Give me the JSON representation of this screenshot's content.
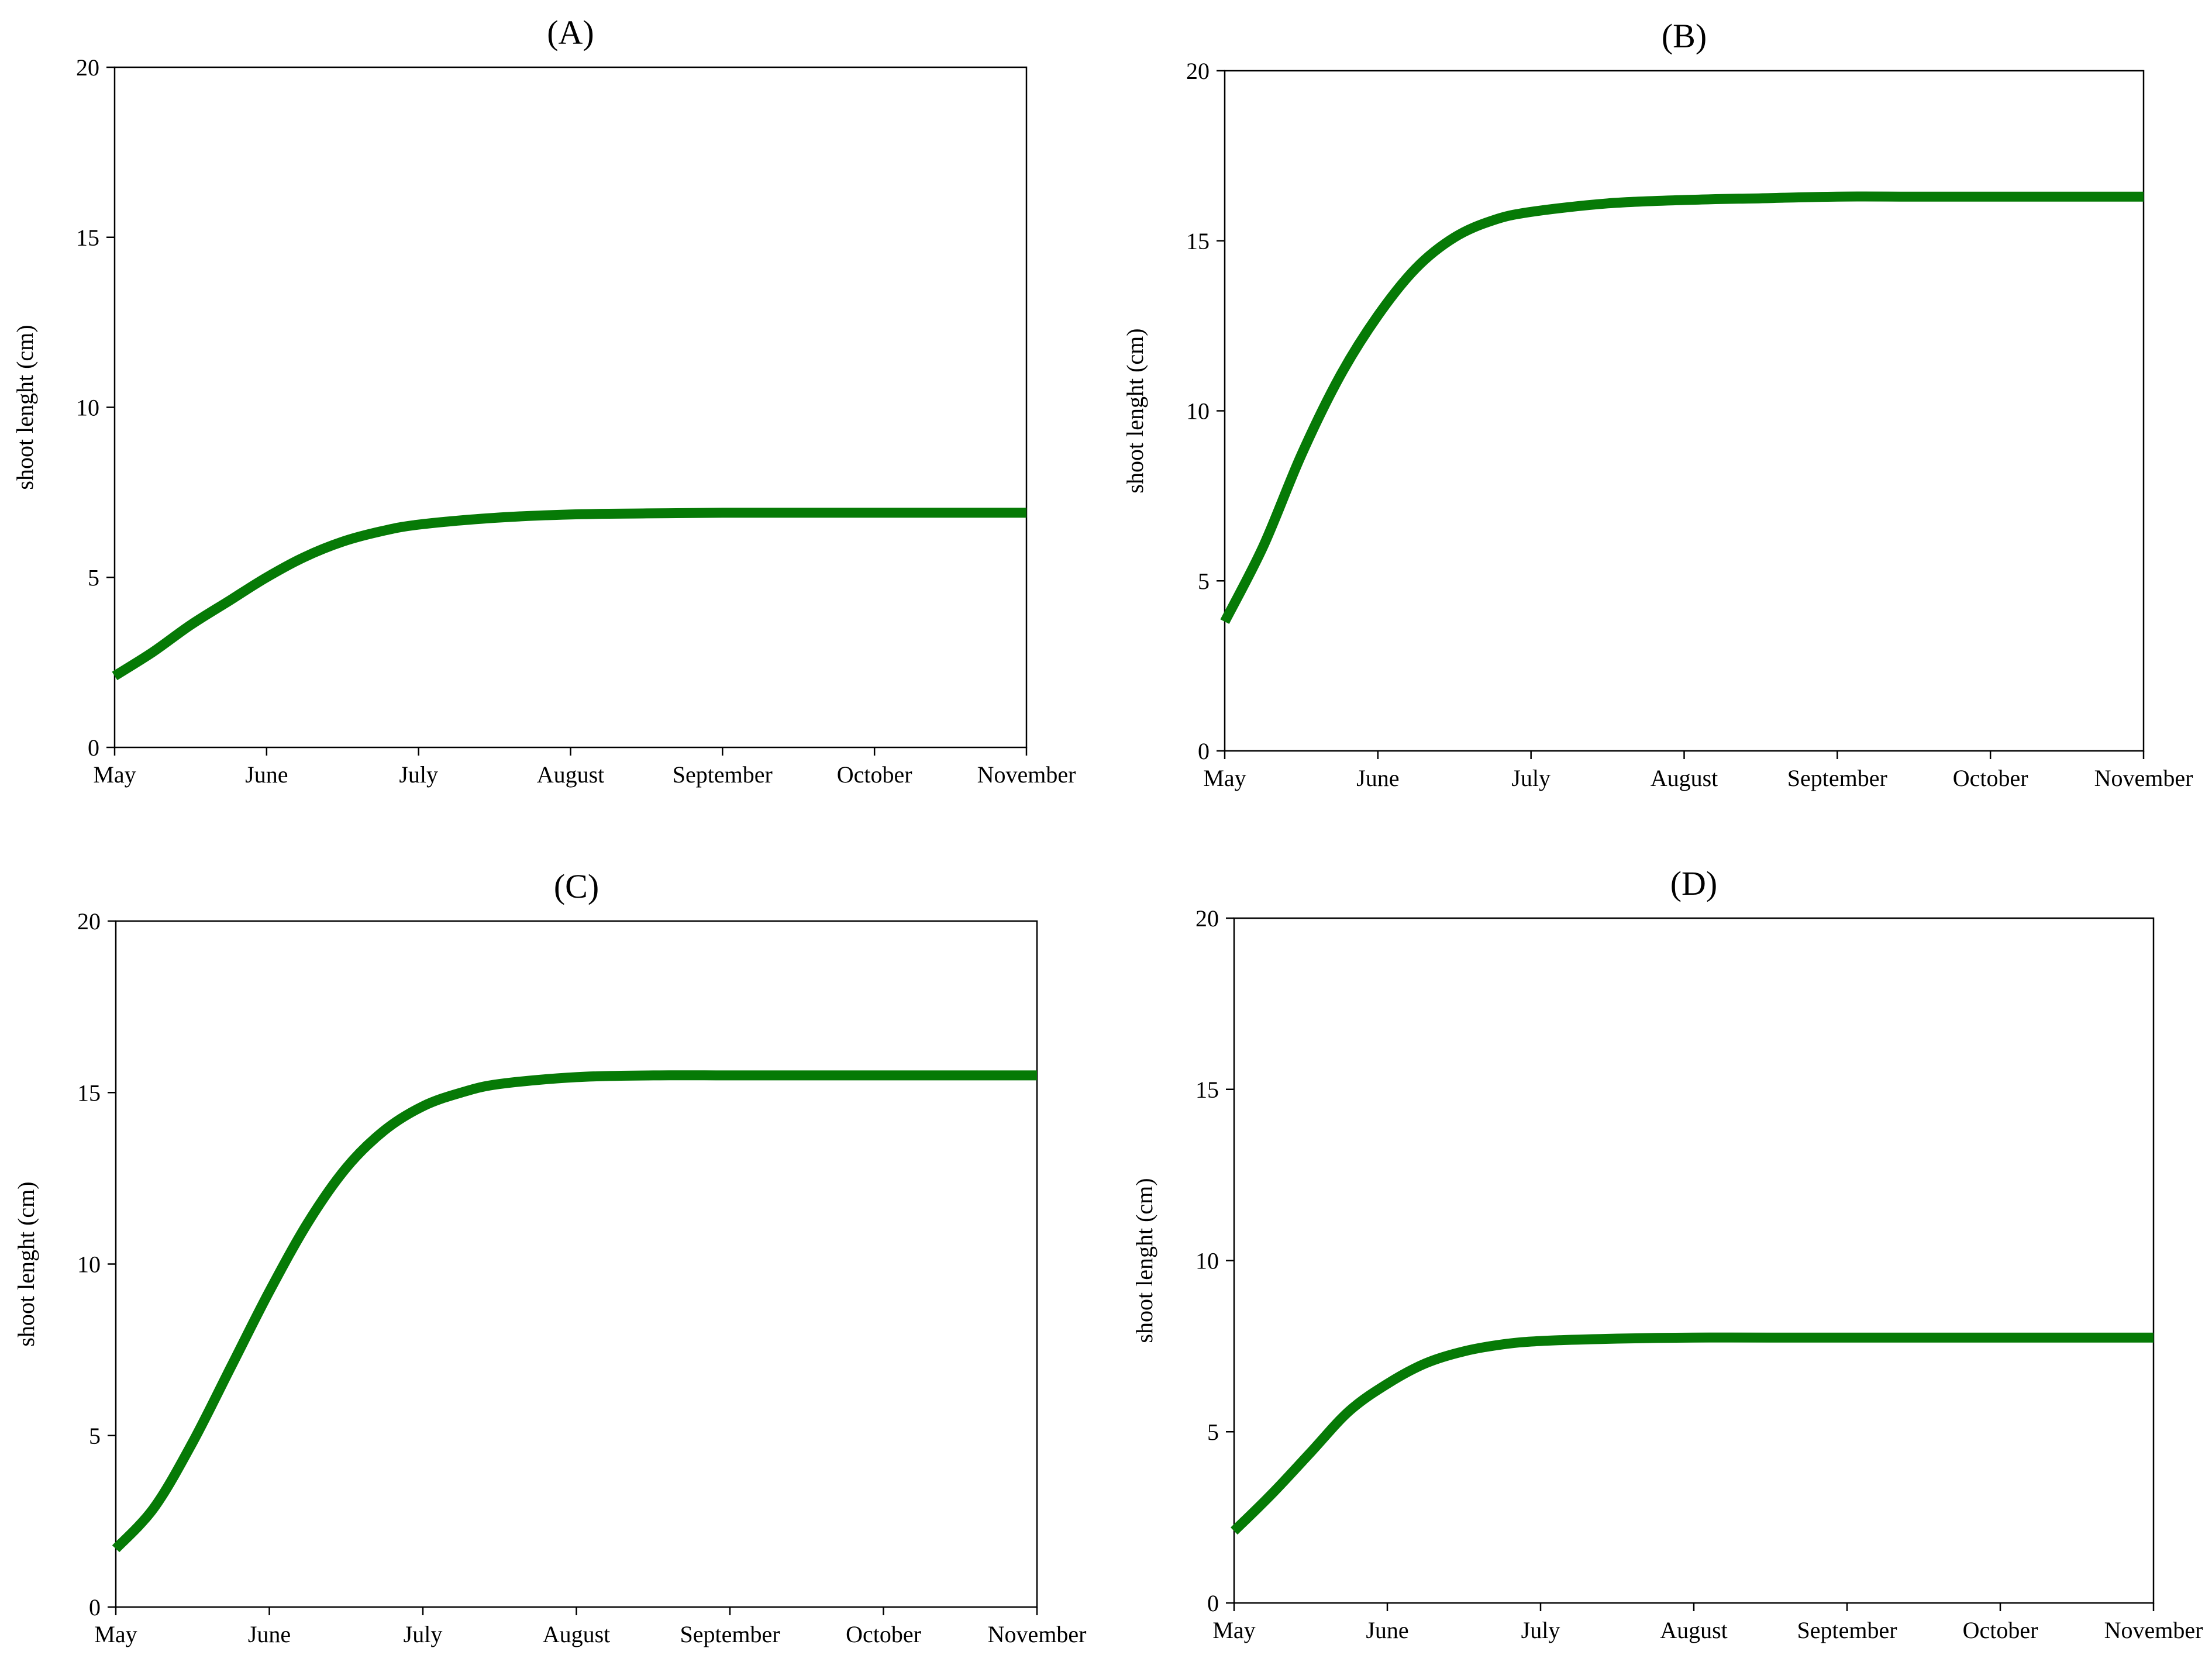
{
  "line_color": "#067a06",
  "chart_data": [
    {
      "type": "line",
      "title": "(A)",
      "xlabel": "",
      "ylabel": "shoot lenght (cm)",
      "categories": [
        "May",
        "June",
        "July",
        "August",
        "September",
        "October",
        "November"
      ],
      "ylim": [
        0,
        20
      ],
      "yticks": [
        0,
        5,
        10,
        15,
        20
      ],
      "grid": false,
      "series": [
        {
          "x": [
            0,
            0.25,
            0.5,
            0.75,
            1,
            1.25,
            1.5,
            1.75,
            2,
            2.5,
            3,
            3.5,
            4,
            4.5,
            5,
            5.5,
            6
          ],
          "y": [
            2.1,
            2.8,
            3.6,
            4.3,
            5.0,
            5.6,
            6.05,
            6.35,
            6.55,
            6.75,
            6.85,
            6.88,
            6.9,
            6.9,
            6.9,
            6.9,
            6.9
          ]
        }
      ]
    },
    {
      "type": "line",
      "title": "(B)",
      "xlabel": "",
      "ylabel": "shoot lenght (cm)",
      "categories": [
        "May",
        "June",
        "July",
        "August",
        "September",
        "October",
        "November"
      ],
      "ylim": [
        0,
        20
      ],
      "yticks": [
        0,
        5,
        10,
        15,
        20
      ],
      "grid": false,
      "series": [
        {
          "x": [
            0,
            0.25,
            0.5,
            0.75,
            1,
            1.25,
            1.5,
            1.75,
            2,
            2.5,
            3,
            3.5,
            4,
            4.5,
            5,
            5.5,
            6
          ],
          "y": [
            3.8,
            6.0,
            8.7,
            11.0,
            12.8,
            14.2,
            15.1,
            15.6,
            15.85,
            16.1,
            16.2,
            16.25,
            16.3,
            16.3,
            16.3,
            16.3,
            16.3
          ]
        }
      ]
    },
    {
      "type": "line",
      "title": "(C)",
      "xlabel": "",
      "ylabel": "shoot lenght (cm)",
      "categories": [
        "May",
        "June",
        "July",
        "August",
        "September",
        "October",
        "November"
      ],
      "ylim": [
        0,
        20
      ],
      "yticks": [
        0,
        5,
        10,
        15,
        20
      ],
      "grid": false,
      "series": [
        {
          "x": [
            0,
            0.25,
            0.5,
            0.75,
            1,
            1.25,
            1.5,
            1.75,
            2,
            2.25,
            2.5,
            3,
            3.5,
            4,
            4.5,
            5,
            5.5,
            6
          ],
          "y": [
            1.7,
            2.9,
            4.8,
            7.0,
            9.2,
            11.2,
            12.8,
            13.9,
            14.6,
            15.0,
            15.25,
            15.45,
            15.5,
            15.5,
            15.5,
            15.5,
            15.5,
            15.5
          ]
        }
      ]
    },
    {
      "type": "line",
      "title": "(D)",
      "xlabel": "",
      "ylabel": "shoot lenght (cm)",
      "categories": [
        "May",
        "June",
        "July",
        "August",
        "September",
        "October",
        "November"
      ],
      "ylim": [
        0,
        20
      ],
      "yticks": [
        0,
        5,
        10,
        15,
        20
      ],
      "grid": false,
      "series": [
        {
          "x": [
            0,
            0.25,
            0.5,
            0.75,
            1,
            1.25,
            1.5,
            1.75,
            2,
            2.5,
            3,
            3.5,
            4,
            4.5,
            5,
            5.5,
            6
          ],
          "y": [
            2.1,
            3.2,
            4.4,
            5.6,
            6.4,
            7.0,
            7.35,
            7.55,
            7.65,
            7.72,
            7.75,
            7.75,
            7.75,
            7.75,
            7.75,
            7.75,
            7.75
          ]
        }
      ]
    }
  ]
}
